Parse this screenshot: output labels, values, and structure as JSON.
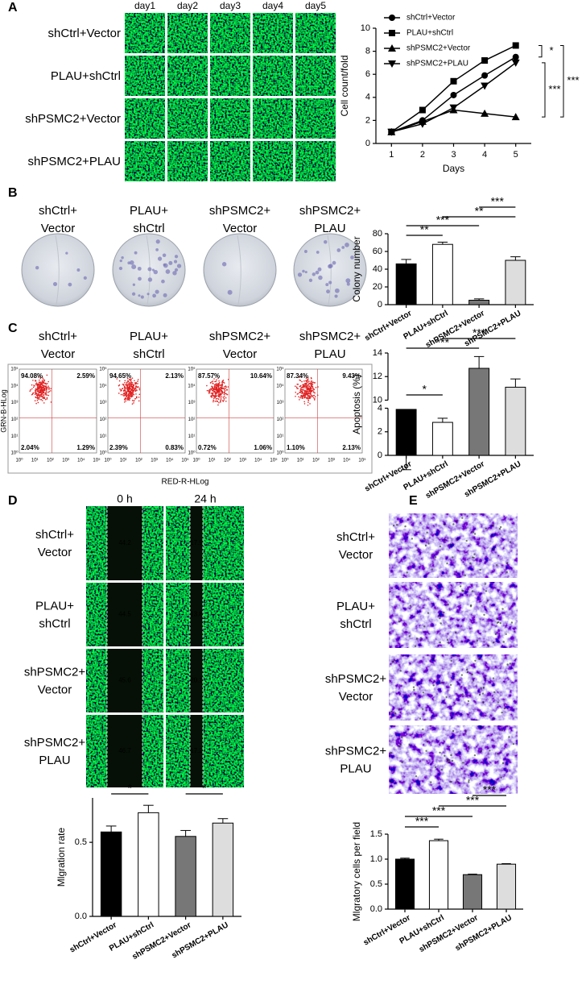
{
  "chart_data": [
    {
      "type": "line",
      "ylabel": "Cell count/fold",
      "xlabel": "Days",
      "x": [
        1,
        2,
        3,
        4,
        5
      ],
      "xlim": [
        0.5,
        5.5
      ],
      "xticks": [
        1,
        2,
        3,
        4,
        5
      ],
      "ylim": [
        0,
        10
      ],
      "yticks": [
        0,
        2,
        4,
        6,
        8,
        10
      ],
      "legend": "upper left",
      "series": [
        {
          "name": "shCtrl+Vector",
          "color": "#000000",
          "marker": "circle",
          "values": [
            1,
            2.0,
            4.2,
            5.9,
            7.5
          ]
        },
        {
          "name": "PLAU+shCtrl",
          "color": "#000000",
          "marker": "square",
          "values": [
            1,
            2.9,
            5.4,
            7.2,
            8.5
          ]
        },
        {
          "name": "shPSMC2+Vector",
          "color": "#000000",
          "marker": "triangle",
          "values": [
            1,
            1.9,
            2.9,
            2.6,
            2.3
          ]
        },
        {
          "name": "shPSMC2+PLAU",
          "color": "#000000",
          "marker": "triangle-down",
          "values": [
            1,
            1.7,
            3.1,
            5.0,
            7.0
          ]
        }
      ],
      "annotations": [
        "*",
        "***",
        "***"
      ]
    },
    {
      "type": "bar",
      "ylabel": "Colony number",
      "categories": [
        "shCtrl+Vector",
        "PLAU+shCtrl",
        "shPSMC2+Vector",
        "shPSMC2+PLAU"
      ],
      "colors": [
        "#000000",
        "#ffffff",
        "#777777",
        "#dddddd"
      ],
      "values": [
        46,
        68,
        5,
        50
      ],
      "errors": [
        5,
        2.5,
        1.5,
        4
      ],
      "ylim": [
        0,
        80
      ],
      "yticks": [
        0,
        20,
        40,
        60,
        80
      ],
      "annotations": [
        "**",
        "***",
        "**",
        "***"
      ]
    },
    {
      "type": "bar",
      "ylabel": "Apoptosis (%)",
      "categories": [
        "shCtrl+Vector",
        "PLAU+shCtrl",
        "shPSMC2+Vector",
        "shPSMC2+PLAU"
      ],
      "colors": [
        "#000000",
        "#ffffff",
        "#777777",
        "#dddddd"
      ],
      "values": [
        3.9,
        2.8,
        12.7,
        11.1
      ],
      "errors": [
        0.2,
        0.35,
        1.0,
        0.7
      ],
      "ylim": [
        0,
        14
      ],
      "axis_break": [
        4,
        10
      ],
      "yticks": [
        0,
        2,
        4,
        10,
        12,
        14
      ],
      "annotations": [
        "*",
        "***",
        "***"
      ]
    },
    {
      "type": "bar",
      "ylabel": "Mlgration rate",
      "categories": [
        "shCtrl+Vector",
        "PLAU+shCtrl",
        "shPSMC2+Vector",
        "shPSMC2+PLAU"
      ],
      "colors": [
        "#000000",
        "#ffffff",
        "#777777",
        "#dddddd"
      ],
      "values": [
        0.57,
        0.7,
        0.54,
        0.63
      ],
      "errors": [
        0.04,
        0.05,
        0.04,
        0.03
      ],
      "ylim": [
        0,
        0.8
      ],
      "yticks": [
        {
          "value": 0,
          "label": "0.0"
        },
        0.5
      ],
      "annotations": [
        "*",
        "*"
      ]
    },
    {
      "type": "bar",
      "ylabel": "Mlgratory cells per field",
      "categories": [
        "shCtrl+Vector",
        "PLAU+shCtrl",
        "shPSMC2+Vector",
        "shPSMC2+PLAU"
      ],
      "colors": [
        "#000000",
        "#ffffff",
        "#777777",
        "#dddddd"
      ],
      "values": [
        1.0,
        1.37,
        0.69,
        0.9
      ],
      "errors": [
        0.02,
        0.03,
        0.01,
        0.01
      ],
      "ylim": [
        0,
        1.5
      ],
      "yticks": [
        {
          "value": 0,
          "label": "0.0"
        },
        0.5,
        {
          "value": 1,
          "label": "1.0"
        },
        1.5
      ],
      "annotations": [
        "***",
        "***",
        "***",
        "***"
      ]
    }
  ],
  "panels": {
    "letters": [
      "A",
      "B",
      "C",
      "D",
      "E"
    ],
    "days": [
      "day1",
      "day2",
      "day3",
      "day4",
      "day5"
    ],
    "groups": [
      "shCtrl+Vector",
      "PLAU+shCtrl",
      "shPSMC2+Vector",
      "shPSMC2+PLAU"
    ],
    "groups_split": [
      [
        "shCtrl+",
        "Vector"
      ],
      [
        "PLAU+",
        "shCtrl"
      ],
      [
        "shPSMC2+",
        "Vector"
      ],
      [
        "shPSMC2+",
        "PLAU"
      ]
    ],
    "flow": {
      "xlabel": "RED-R-HLog",
      "ylabel": "GRN-B-HLog",
      "ticks": [
        "10⁰",
        "10¹",
        "10²",
        "10³",
        "10⁴",
        "10⁵"
      ],
      "quadrants": [
        [
          "94.08%",
          "2.59%",
          "2.04%",
          "1.29%"
        ],
        [
          "94.65%",
          "2.13%",
          "2.39%",
          "0.83%"
        ],
        [
          "87.57%",
          "10.64%",
          "0.72%",
          "1.06%"
        ],
        [
          "87.34%",
          "9.43%",
          "1.10%",
          "2.13%"
        ]
      ]
    },
    "wound": {
      "times": [
        "0 h",
        "24 h"
      ],
      "widths": [
        [
          "44.2",
          "17.9"
        ],
        [
          "44.5",
          "13.8"
        ],
        [
          "45.6",
          "20.1"
        ],
        [
          "46.7",
          "17.2"
        ]
      ]
    }
  }
}
